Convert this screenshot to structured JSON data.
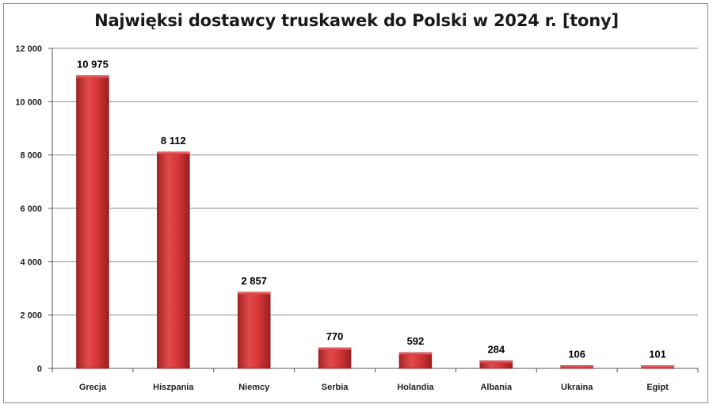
{
  "chart_data": {
    "type": "bar",
    "title": "Najwięksi dostawcy truskawek do Polski w 2024 r. [tony]",
    "categories": [
      "Grecja",
      "Hiszpania",
      "Niemcy",
      "Serbia",
      "Holandia",
      "Albania",
      "Ukraina",
      "Egipt"
    ],
    "values": [
      10975,
      8112,
      2857,
      770,
      592,
      284,
      106,
      101
    ],
    "value_labels": [
      "10 975",
      "8 112",
      "2 857",
      "770",
      "592",
      "284",
      "106",
      "101"
    ],
    "yticks": [
      "0",
      "2 000",
      "4 000",
      "6 000",
      "8 000",
      "10 000",
      "12 000"
    ],
    "ylim": [
      0,
      12000
    ],
    "grid": true,
    "legend": "none",
    "bar_color": "#d9393b",
    "bar_edge_color": "#8e1d1f"
  }
}
